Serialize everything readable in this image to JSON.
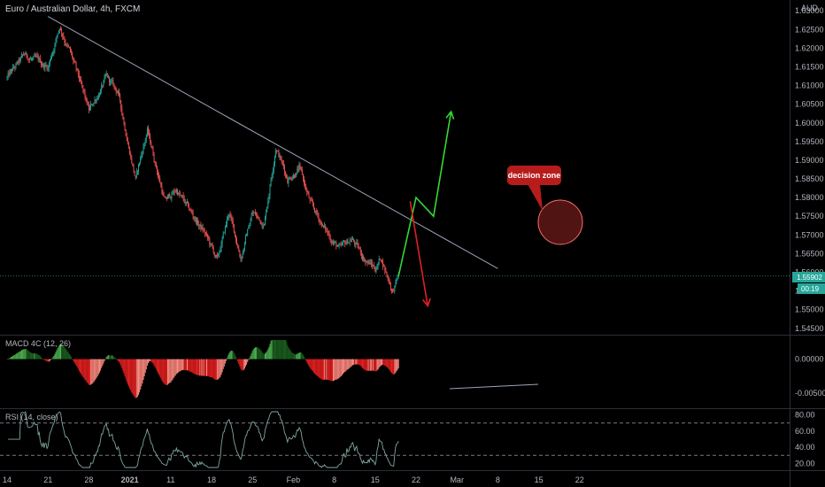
{
  "chart_title": "Euro / Australian Dollar, 4h, FXCM",
  "currency_label": "AUD",
  "colors": {
    "background": "#000000",
    "up": "#26a69a",
    "down": "#ef5350",
    "axis_text": "#b2b5be",
    "trendline": "#9aa4b8",
    "macd_up": "#4caf50",
    "macd_down": "#e52020",
    "rsi": "#7fa7a0",
    "arrow_up": "#33d933",
    "arrow_down": "#e02020",
    "callout": "#b71c1c"
  },
  "price_badge": {
    "price": "1.55902",
    "countdown": "00:19"
  },
  "annotation": {
    "text": "decision zone"
  },
  "chart_data": [
    {
      "type": "candlestick",
      "title": "Euro / Australian Dollar, 4h, FXCM",
      "y_axis_ticks": [
        "1.63000",
        "1.62500",
        "1.62000",
        "1.61500",
        "1.61000",
        "1.60500",
        "1.60000",
        "1.59500",
        "1.59000",
        "1.58500",
        "1.58000",
        "1.57500",
        "1.57000",
        "1.56500",
        "1.56000",
        "1.55500",
        "1.55000",
        "1.54500"
      ],
      "ylim": [
        1.544,
        1.631
      ],
      "last_price": 1.55902,
      "x_axis_ticks": [
        "14",
        "21",
        "28",
        "2021",
        "11",
        "18",
        "25",
        "Feb",
        "8",
        "15",
        "22",
        "Mar",
        "8",
        "15",
        "22"
      ],
      "price_path": [
        {
          "date": "2020-12-14",
          "price": 1.612
        },
        {
          "date": "2020-12-17",
          "price": 1.618
        },
        {
          "date": "2020-12-21",
          "price": 1.615
        },
        {
          "date": "2020-12-23",
          "price": 1.626
        },
        {
          "date": "2020-12-25",
          "price": 1.618
        },
        {
          "date": "2020-12-28",
          "price": 1.603
        },
        {
          "date": "2020-12-31",
          "price": 1.612
        },
        {
          "date": "2021-01-02",
          "price": 1.608
        },
        {
          "date": "2021-01-05",
          "price": 1.585
        },
        {
          "date": "2021-01-07",
          "price": 1.598
        },
        {
          "date": "2021-01-10",
          "price": 1.579
        },
        {
          "date": "2021-01-12",
          "price": 1.582
        },
        {
          "date": "2021-01-14",
          "price": 1.577
        },
        {
          "date": "2021-01-17",
          "price": 1.57
        },
        {
          "date": "2021-01-19",
          "price": 1.563
        },
        {
          "date": "2021-01-21",
          "price": 1.576
        },
        {
          "date": "2021-01-23",
          "price": 1.564
        },
        {
          "date": "2021-01-25",
          "price": 1.576
        },
        {
          "date": "2021-01-27",
          "price": 1.573
        },
        {
          "date": "2021-01-29",
          "price": 1.594
        },
        {
          "date": "2021-01-31",
          "price": 1.585
        },
        {
          "date": "2021-02-02",
          "price": 1.588
        },
        {
          "date": "2021-02-04",
          "price": 1.578
        },
        {
          "date": "2021-02-07",
          "price": 1.57
        },
        {
          "date": "2021-02-09",
          "price": 1.566
        },
        {
          "date": "2021-02-11",
          "price": 1.569
        },
        {
          "date": "2021-02-13",
          "price": 1.564
        },
        {
          "date": "2021-02-15",
          "price": 1.561
        },
        {
          "date": "2021-02-16",
          "price": 1.564
        },
        {
          "date": "2021-02-18",
          "price": 1.555
        },
        {
          "date": "2021-02-19",
          "price": 1.559
        }
      ],
      "trendline": [
        {
          "date": "2020-12-21",
          "price": 1.6285
        },
        {
          "date": "2021-03-08",
          "price": 1.561
        }
      ],
      "projections": [
        {
          "name": "up",
          "path": [
            {
              "date": "2021-02-19",
              "price": 1.559
            },
            {
              "date": "2021-02-22",
              "price": 1.58
            },
            {
              "date": "2021-02-25",
              "price": 1.575
            },
            {
              "date": "2021-02-28",
              "price": 1.603
            }
          ]
        },
        {
          "name": "down",
          "path": [
            {
              "date": "2021-02-21",
              "price": 1.579
            },
            {
              "date": "2021-02-24",
              "price": 1.551
            }
          ]
        }
      ]
    },
    {
      "type": "bar",
      "title": "MACD 4C (12, 26)",
      "y_axis_ticks": [
        "0.00000",
        "-0.00500"
      ],
      "ylim": [
        -0.0068,
        0.0028
      ]
    },
    {
      "type": "line",
      "title": "RSI (14, close)",
      "y_axis_ticks": [
        "80.00",
        "60.00",
        "40.00",
        "20.00"
      ],
      "levels": [
        70,
        30
      ],
      "ylim": [
        15,
        84
      ]
    }
  ]
}
